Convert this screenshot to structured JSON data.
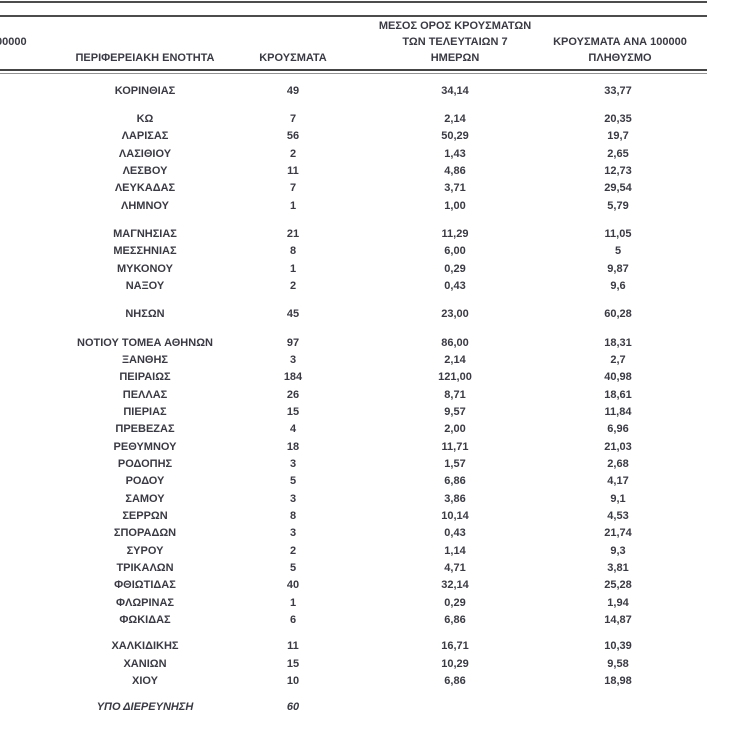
{
  "table": {
    "cropped_fragment": "00000",
    "columns": {
      "region": "ΠΕΡΙΦΕΡΕΙΑΚΗ ΕΝΟΤΗΤΑ",
      "cases": "ΚΡΟΥΣΜΑΤΑ",
      "avg7_lines": [
        "ΜΕΣΟΣ ΟΡΟΣ ΚΡΟΥΣΜΑΤΩΝ",
        "ΤΩΝ ΤΕΛΕΥΤΑΙΩΝ 7",
        "ΗΜΕΡΩΝ"
      ],
      "per100k_lines": [
        "ΚΡΟΥΣΜΑΤΑ ΑΝΑ 100000",
        "ΠΛΗΘΥΣΜΟ"
      ]
    },
    "rows": [
      {
        "name": "ΚΟΡΙΝΘΙΑΣ",
        "cases": "49",
        "avg7": "34,14",
        "per100k": "33,77"
      },
      {
        "name": "ΚΩ",
        "cases": "7",
        "avg7": "2,14",
        "per100k": "20,35",
        "gap": "lg"
      },
      {
        "name": "ΛΑΡΙΣΑΣ",
        "cases": "56",
        "avg7": "50,29",
        "per100k": "19,7"
      },
      {
        "name": "ΛΑΣΙΘΙΟΥ",
        "cases": "2",
        "avg7": "1,43",
        "per100k": "2,65"
      },
      {
        "name": "ΛΕΣΒΟΥ",
        "cases": "11",
        "avg7": "4,86",
        "per100k": "12,73"
      },
      {
        "name": "ΛΕΥΚΑΔΑΣ",
        "cases": "7",
        "avg7": "3,71",
        "per100k": "29,54"
      },
      {
        "name": "ΛΗΜΝΟΥ",
        "cases": "1",
        "avg7": "1,00",
        "per100k": "5,79"
      },
      {
        "name": "ΜΑΓΝΗΣΙΑΣ",
        "cases": "21",
        "avg7": "11,29",
        "per100k": "11,05",
        "gap": "lg"
      },
      {
        "name": "ΜΕΣΣΗΝΙΑΣ",
        "cases": "8",
        "avg7": "6,00",
        "per100k": "5"
      },
      {
        "name": "ΜΥΚΟΝΟΥ",
        "cases": "1",
        "avg7": "0,29",
        "per100k": "9,87"
      },
      {
        "name": "ΝΑΞΟΥ",
        "cases": "2",
        "avg7": "0,43",
        "per100k": "9,6"
      },
      {
        "name": "ΝΗΣΩΝ",
        "cases": "45",
        "avg7": "23,00",
        "per100k": "60,28",
        "gap": "lg"
      },
      {
        "name": "ΝΟΤΙΟΥ ΤΟΜΕΑ ΑΘΗΝΩΝ",
        "cases": "97",
        "avg7": "86,00",
        "per100k": "18,31",
        "gap": "lg"
      },
      {
        "name": "ΞΑΝΘΗΣ",
        "cases": "3",
        "avg7": "2,14",
        "per100k": "2,7"
      },
      {
        "name": "ΠΕΙΡΑΙΩΣ",
        "cases": "184",
        "avg7": "121,00",
        "per100k": "40,98"
      },
      {
        "name": "ΠΕΛΛΑΣ",
        "cases": "26",
        "avg7": "8,71",
        "per100k": "18,61"
      },
      {
        "name": "ΠΙΕΡΙΑΣ",
        "cases": "15",
        "avg7": "9,57",
        "per100k": "11,84"
      },
      {
        "name": "ΠΡΕΒΕΖΑΣ",
        "cases": "4",
        "avg7": "2,00",
        "per100k": "6,96"
      },
      {
        "name": "ΡΕΘΥΜΝΟΥ",
        "cases": "18",
        "avg7": "11,71",
        "per100k": "21,03"
      },
      {
        "name": "ΡΟΔΟΠΗΣ",
        "cases": "3",
        "avg7": "1,57",
        "per100k": "2,68"
      },
      {
        "name": "ΡΟΔΟΥ",
        "cases": "5",
        "avg7": "6,86",
        "per100k": "4,17"
      },
      {
        "name": "ΣΑΜΟΥ",
        "cases": "3",
        "avg7": "3,86",
        "per100k": "9,1"
      },
      {
        "name": "ΣΕΡΡΩΝ",
        "cases": "8",
        "avg7": "10,14",
        "per100k": "4,53"
      },
      {
        "name": "ΣΠΟΡΑΔΩΝ",
        "cases": "3",
        "avg7": "0,43",
        "per100k": "21,74"
      },
      {
        "name": "ΣΥΡΟΥ",
        "cases": "2",
        "avg7": "1,14",
        "per100k": "9,3"
      },
      {
        "name": "ΤΡΙΚΑΛΩΝ",
        "cases": "5",
        "avg7": "4,71",
        "per100k": "3,81"
      },
      {
        "name": "ΦΘΙΩΤΙΔΑΣ",
        "cases": "40",
        "avg7": "32,14",
        "per100k": "25,28"
      },
      {
        "name": "ΦΛΩΡΙΝΑΣ",
        "cases": "1",
        "avg7": "0,29",
        "per100k": "1,94"
      },
      {
        "name": "ΦΩΚΙΔΑΣ",
        "cases": "6",
        "avg7": "6,86",
        "per100k": "14,87"
      },
      {
        "name": "ΧΑΛΚΙΔΙΚΗΣ",
        "cases": "11",
        "avg7": "16,71",
        "per100k": "10,39",
        "gap": "sm"
      },
      {
        "name": "ΧΑΝΙΩΝ",
        "cases": "15",
        "avg7": "10,29",
        "per100k": "9,58"
      },
      {
        "name": "ΧΙΟΥ",
        "cases": "10",
        "avg7": "6,86",
        "per100k": "18,98"
      },
      {
        "name": "ΥΠΟ ΔΙΕΡΕΥΝΗΣΗ",
        "cases": "60",
        "avg7": "",
        "per100k": "",
        "gap": "sm",
        "italic": true
      }
    ]
  }
}
